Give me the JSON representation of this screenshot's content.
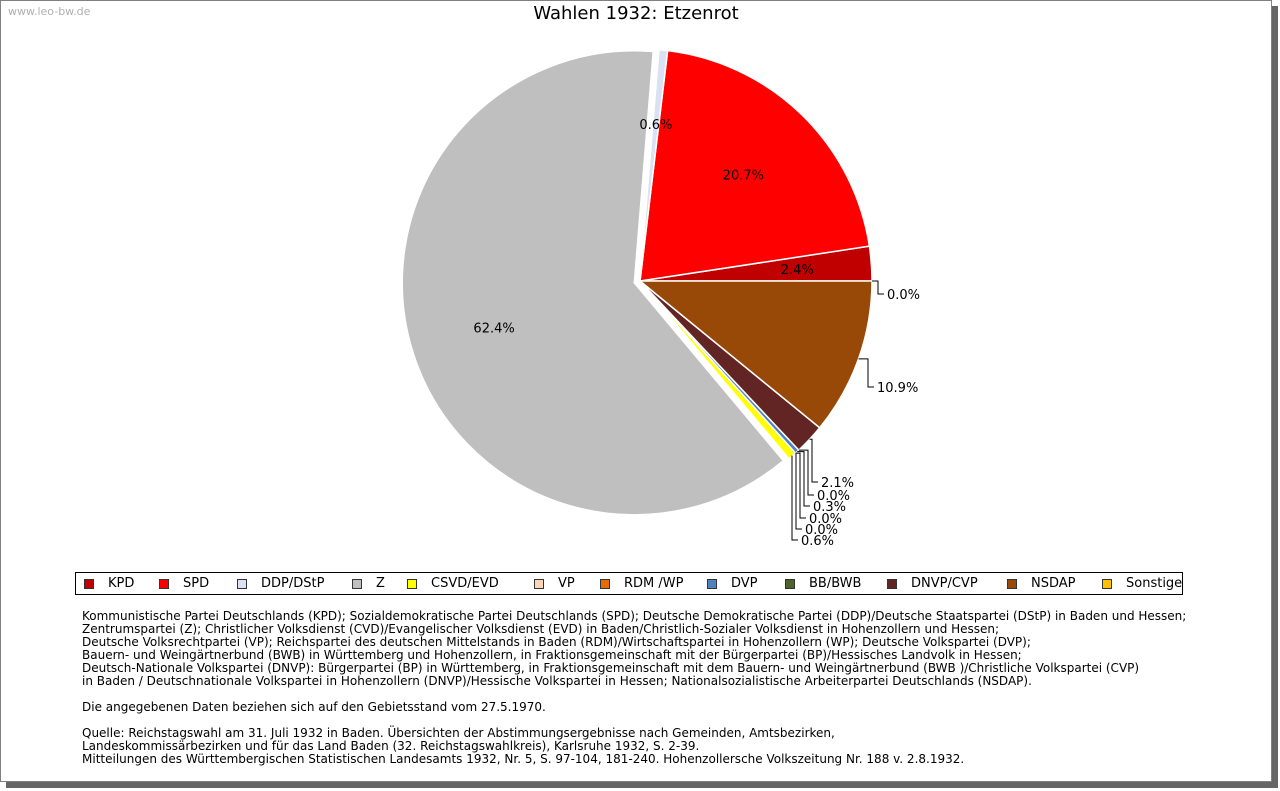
{
  "watermark": "www.leo-bw.de",
  "chart_data": {
    "type": "pie",
    "title": "Wahlen 1932: Etzenrot",
    "slices": [
      {
        "name": "KPD",
        "value": 2.4,
        "label": "2.4%",
        "color": "#c00000"
      },
      {
        "name": "SPD",
        "value": 20.7,
        "label": "20.7%",
        "color": "#ff0000"
      },
      {
        "name": "DDP/DStP",
        "value": 0.6,
        "label": "0.6%",
        "color": "#d9e1f2"
      },
      {
        "name": "Z",
        "value": 62.4,
        "label": "62.4%",
        "color": "#bfbfbf"
      },
      {
        "name": "CSVD/EVD",
        "value": 0.6,
        "label": "0.6%",
        "color": "#ffff00"
      },
      {
        "name": "VP",
        "value": 0.0,
        "label": "0.0%",
        "color": "#fbd5b5"
      },
      {
        "name": "RDM /WP",
        "value": 0.0,
        "label": "0.0%",
        "color": "#e36c09"
      },
      {
        "name": "DVP",
        "value": 0.3,
        "label": "0.3%",
        "color": "#4f81bd"
      },
      {
        "name": "BB/BWB",
        "value": 0.0,
        "label": "0.0%",
        "color": "#4f6228"
      },
      {
        "name": "DNVP/CVP",
        "value": 2.1,
        "label": "2.1%",
        "color": "#632523"
      },
      {
        "name": "NSDAP",
        "value": 10.9,
        "label": "10.9%",
        "color": "#984807"
      },
      {
        "name": "Sonstige",
        "value": 0.0,
        "label": "0.0%",
        "color": "#ffc000"
      }
    ]
  },
  "notes": {
    "parties": [
      "Kommunistische Partei Deutschlands (KPD); Sozialdemokratische Partei Deutschlands (SPD); Deutsche Demokratische Partei (DDP)/Deutsche Staatspartei (DStP) in Baden und Hessen;",
      "Zentrumspartei (Z); Christlicher Volksdienst (CVD)/Evangelischer Volksdienst (EVD) in Baden/Christlich-Sozialer Volksdienst in Hohenzollern und Hessen;",
      "Deutsche Volksrechtpartei (VP); Reichspartei des deutschen Mittelstands in Baden (RDM)/Wirtschaftspartei in Hohenzollern (WP); Deutsche Volkspartei (DVP);",
      "Bauern- und Weingärtnerbund (BWB) in Württemberg und Hohenzollern, in Fraktionsgemeinschaft mit der Bürgerpartei (BP)/Hessisches Landvolk in Hessen;",
      "Deutsch-Nationale Volkspartei (DNVP): Bürgerpartei (BP) in Württemberg, in Fraktionsgemeinschaft mit dem Bauern- und Weingärtnerbund (BWB )/Christliche Volkspartei (CVP)",
      "in Baden / Deutschnationale Volkspartei in Hohenzollern (DNVP)/Hessische Volkspartei in Hessen; Nationalsozialistische Arbeiterpartei Deutschlands (NSDAP)."
    ],
    "gebietsstand": "Die angegebenen Daten beziehen sich auf den Gebietsstand vom 27.5.1970.",
    "source": [
      "Quelle: Reichstagswahl am 31. Juli 1932 in Baden. Übersichten der Abstimmungsergebnisse nach Gemeinden, Amtsbezirken,",
      "Landeskommissärbezirken und für das Land Baden (32. Reichstagswahlkreis), Karlsruhe 1932, S. 2-39.",
      "Mitteilungen des Württembergischen Statistischen Landesamts 1932, Nr. 5, S. 97-104, 181-240. Hohenzollersche Volkszeitung Nr. 188 v. 2.8.1932."
    ]
  }
}
